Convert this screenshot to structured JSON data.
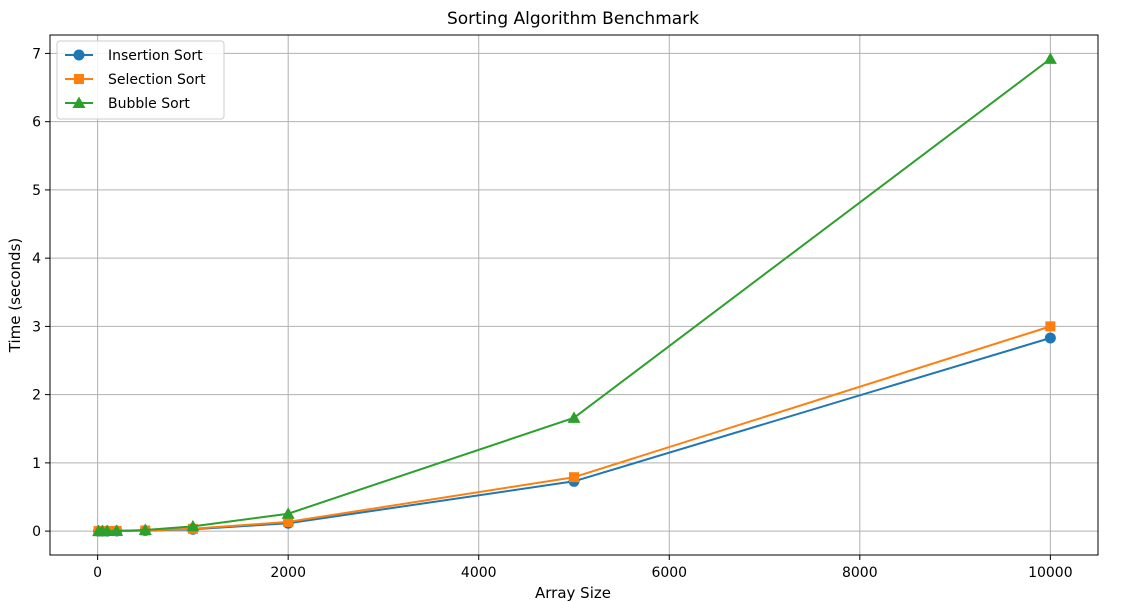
{
  "chart_data": {
    "type": "line",
    "title": "Sorting Algorithm Benchmark",
    "xlabel": "Array Size",
    "ylabel": "Time (seconds)",
    "xlim": [
      -500,
      10500
    ],
    "ylim": [
      -0.35,
      7.27
    ],
    "xticks": [
      0,
      2000,
      4000,
      6000,
      8000,
      10000
    ],
    "yticks": [
      0,
      1,
      2,
      3,
      4,
      5,
      6,
      7
    ],
    "grid": true,
    "legend_position": "top-left",
    "x": [
      10,
      50,
      100,
      200,
      500,
      1000,
      2000,
      5000,
      10000
    ],
    "series": [
      {
        "name": "Insertion Sort",
        "color": "#1f77b4",
        "marker": "circle",
        "values": [
          0.0,
          0.0,
          0.0,
          0.001,
          0.007,
          0.028,
          0.115,
          0.73,
          2.83
        ]
      },
      {
        "name": "Selection Sort",
        "color": "#ff7f0e",
        "marker": "square",
        "values": [
          0.0,
          0.0,
          0.001,
          0.002,
          0.009,
          0.034,
          0.135,
          0.79,
          3.0
        ]
      },
      {
        "name": "Bubble Sort",
        "color": "#2ca02c",
        "marker": "triangle",
        "values": [
          0.0,
          0.0,
          0.001,
          0.003,
          0.017,
          0.07,
          0.255,
          1.66,
          6.92
        ]
      }
    ]
  }
}
